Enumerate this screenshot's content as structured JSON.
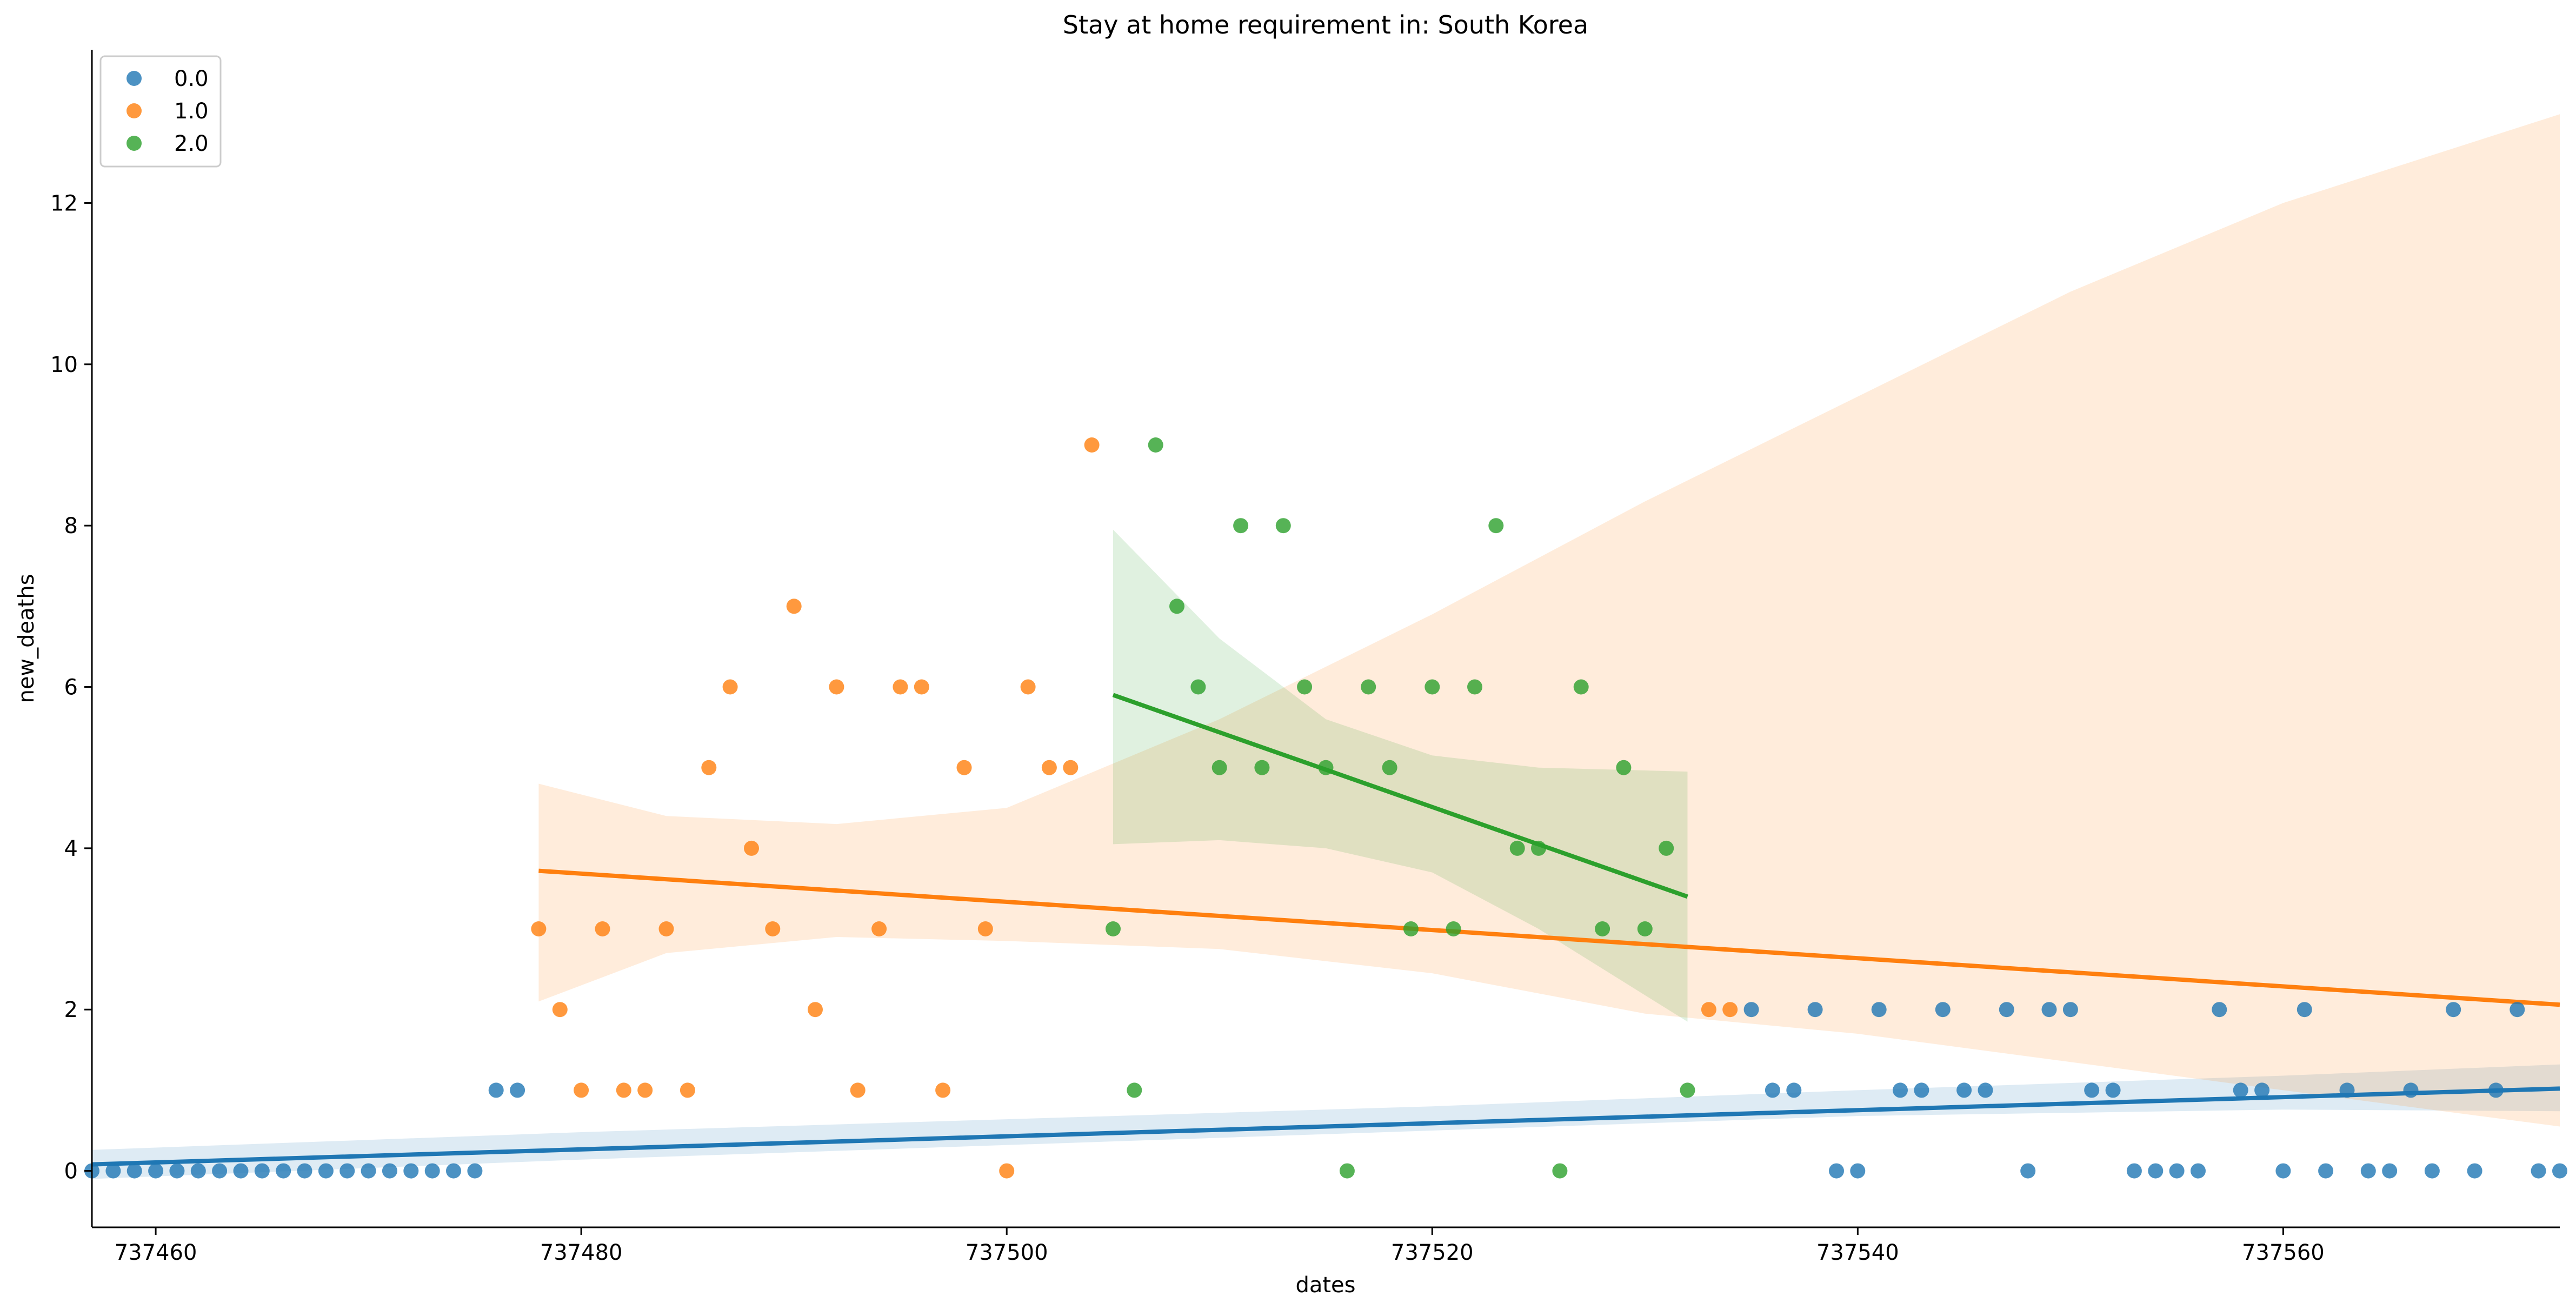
{
  "chart_data": {
    "type": "scatter",
    "title": "Stay at home requirement in: South Korea",
    "xlabel": "dates",
    "ylabel": "new_deaths",
    "xlim": [
      737457,
      737573
    ],
    "ylim": [
      -0.7,
      13.9
    ],
    "x_ticks": [
      737460,
      737480,
      737500,
      737520,
      737540,
      737560
    ],
    "y_ticks": [
      0,
      2,
      4,
      6,
      8,
      10,
      12
    ],
    "legend_position": "top-left",
    "grid": false,
    "series": [
      {
        "name": "0.0",
        "color": "#1f77b4",
        "points": [
          [
            737457,
            0
          ],
          [
            737458,
            0
          ],
          [
            737459,
            0
          ],
          [
            737460,
            0
          ],
          [
            737461,
            0
          ],
          [
            737462,
            0
          ],
          [
            737463,
            0
          ],
          [
            737464,
            0
          ],
          [
            737465,
            0
          ],
          [
            737466,
            0
          ],
          [
            737467,
            0
          ],
          [
            737468,
            0
          ],
          [
            737469,
            0
          ],
          [
            737470,
            0
          ],
          [
            737471,
            0
          ],
          [
            737472,
            0
          ],
          [
            737473,
            0
          ],
          [
            737474,
            0
          ],
          [
            737475,
            0
          ],
          [
            737476,
            1
          ],
          [
            737477,
            1
          ],
          [
            737535,
            2
          ],
          [
            737536,
            1
          ],
          [
            737537,
            1
          ],
          [
            737538,
            2
          ],
          [
            737539,
            0
          ],
          [
            737540,
            0
          ],
          [
            737541,
            2
          ],
          [
            737542,
            1
          ],
          [
            737543,
            1
          ],
          [
            737544,
            2
          ],
          [
            737545,
            1
          ],
          [
            737546,
            1
          ],
          [
            737547,
            2
          ],
          [
            737548,
            0
          ],
          [
            737549,
            2
          ],
          [
            737550,
            2
          ],
          [
            737551,
            1
          ],
          [
            737552,
            1
          ],
          [
            737553,
            0
          ],
          [
            737554,
            0
          ],
          [
            737555,
            0
          ],
          [
            737556,
            0
          ],
          [
            737557,
            2
          ],
          [
            737558,
            1
          ],
          [
            737559,
            1
          ],
          [
            737560,
            0
          ],
          [
            737561,
            2
          ],
          [
            737562,
            0
          ],
          [
            737563,
            1
          ],
          [
            737564,
            0
          ],
          [
            737565,
            0
          ],
          [
            737566,
            1
          ],
          [
            737567,
            0
          ],
          [
            737568,
            2
          ],
          [
            737569,
            0
          ],
          [
            737570,
            1
          ],
          [
            737571,
            2
          ],
          [
            737572,
            0
          ],
          [
            737573,
            0
          ]
        ],
        "fit": {
          "x": [
            737457,
            737573
          ],
          "y": [
            0.08,
            1.02
          ]
        },
        "ci": {
          "x": [
            737457,
            737480,
            737500,
            737520,
            737540,
            737560,
            737573
          ],
          "lower": [
            -0.1,
            0.14,
            0.32,
            0.5,
            0.68,
            0.76,
            0.74
          ],
          "upper": [
            0.26,
            0.48,
            0.64,
            0.8,
            1.0,
            1.18,
            1.32
          ]
        }
      },
      {
        "name": "1.0",
        "color": "#ff7f0e",
        "points": [
          [
            737478,
            3
          ],
          [
            737479,
            2
          ],
          [
            737480,
            1
          ],
          [
            737481,
            3
          ],
          [
            737482,
            1
          ],
          [
            737483,
            1
          ],
          [
            737484,
            3
          ],
          [
            737485,
            1
          ],
          [
            737486,
            5
          ],
          [
            737487,
            6
          ],
          [
            737488,
            4
          ],
          [
            737489,
            3
          ],
          [
            737490,
            7
          ],
          [
            737491,
            2
          ],
          [
            737492,
            6
          ],
          [
            737493,
            1
          ],
          [
            737494,
            3
          ],
          [
            737495,
            6
          ],
          [
            737496,
            6
          ],
          [
            737497,
            1
          ],
          [
            737498,
            5
          ],
          [
            737499,
            3
          ],
          [
            737500,
            0
          ],
          [
            737501,
            6
          ],
          [
            737502,
            5
          ],
          [
            737503,
            5
          ],
          [
            737504,
            9
          ],
          [
            737533,
            2
          ],
          [
            737534,
            2
          ]
        ],
        "fit": {
          "x": [
            737478,
            737573
          ],
          "y": [
            3.72,
            2.06
          ]
        },
        "ci": {
          "x": [
            737478,
            737484,
            737492,
            737500,
            737510,
            737520,
            737530,
            737540,
            737550,
            737560,
            737573
          ],
          "lower": [
            2.1,
            2.7,
            2.9,
            2.85,
            2.75,
            2.45,
            1.95,
            1.7,
            1.35,
            1.0,
            0.55
          ],
          "upper": [
            4.8,
            4.4,
            4.3,
            4.5,
            5.6,
            6.9,
            8.3,
            9.6,
            10.9,
            12.0,
            13.1
          ]
        }
      },
      {
        "name": "2.0",
        "color": "#2ca02c",
        "points": [
          [
            737505,
            3
          ],
          [
            737506,
            1
          ],
          [
            737507,
            9
          ],
          [
            737508,
            7
          ],
          [
            737509,
            6
          ],
          [
            737510,
            5
          ],
          [
            737511,
            8
          ],
          [
            737512,
            5
          ],
          [
            737513,
            8
          ],
          [
            737514,
            6
          ],
          [
            737515,
            5
          ],
          [
            737516,
            0
          ],
          [
            737517,
            6
          ],
          [
            737518,
            5
          ],
          [
            737519,
            3
          ],
          [
            737520,
            6
          ],
          [
            737521,
            3
          ],
          [
            737522,
            6
          ],
          [
            737523,
            8
          ],
          [
            737524,
            4
          ],
          [
            737525,
            4
          ],
          [
            737526,
            0
          ],
          [
            737527,
            6
          ],
          [
            737528,
            3
          ],
          [
            737529,
            5
          ],
          [
            737530,
            3
          ],
          [
            737531,
            4
          ],
          [
            737532,
            1
          ]
        ],
        "fit": {
          "x": [
            737505,
            737532
          ],
          "y": [
            5.9,
            3.4
          ]
        },
        "ci": {
          "x": [
            737505,
            737510,
            737515,
            737520,
            737525,
            737532
          ],
          "lower": [
            4.05,
            4.1,
            4.0,
            3.7,
            3.0,
            1.85
          ],
          "upper": [
            7.95,
            6.6,
            5.6,
            5.15,
            5.0,
            4.95
          ]
        }
      }
    ]
  }
}
